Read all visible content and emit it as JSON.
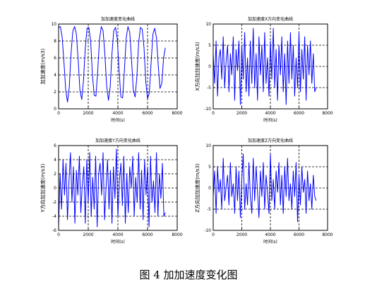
{
  "caption": "图 4  加加速度变化图",
  "chart_data": [
    {
      "type": "line",
      "title": "加加速度变化曲线",
      "xlabel": "时间(s)",
      "ylabel": "加加速度(m/s3)",
      "xlim": [
        0,
        8000
      ],
      "ylim": [
        0,
        10
      ],
      "xticks": [
        0,
        2000,
        4000,
        6000,
        8000
      ],
      "yticks": [
        0,
        2,
        4,
        6,
        8,
        10
      ],
      "grid": true,
      "series": [
        {
          "color": "#0000ff",
          "x": [
            0,
            120,
            240,
            360,
            480,
            600,
            720,
            840,
            960,
            1080,
            1200,
            1320,
            1440,
            1560,
            1680,
            1800,
            1920,
            2040,
            2160,
            2280,
            2400,
            2520,
            2640,
            2760,
            2880,
            3000,
            3120,
            3240,
            3360,
            3480,
            3600,
            3720,
            3840,
            3960,
            4080,
            4200,
            4320,
            4440,
            4560,
            4680,
            4800,
            4920,
            5040,
            5160,
            5280,
            5400,
            5520,
            5640,
            5760,
            5880,
            6000,
            6120,
            6240,
            6360,
            6480,
            6600,
            6720,
            6840,
            6960,
            7080,
            7200
          ],
          "y": [
            9.6,
            9.7,
            8.5,
            5.5,
            2.2,
            0.8,
            2.5,
            6.5,
            9.2,
            9.7,
            8.8,
            5.8,
            2.2,
            1.1,
            3.4,
            7.2,
            9.5,
            9.6,
            8.0,
            4.0,
            1.6,
            1.5,
            4.5,
            8.2,
            9.7,
            9.2,
            6.5,
            2.8,
            1.0,
            2.6,
            6.5,
            9.2,
            9.6,
            8.2,
            4.5,
            1.4,
            1.3,
            4.5,
            8.4,
            9.7,
            9.0,
            5.8,
            2.2,
            1.4,
            3.8,
            7.8,
            9.6,
            9.4,
            7.2,
            3.2,
            1.2,
            1.9,
            5.4,
            8.8,
            9.5,
            8.4,
            5.2,
            2.4,
            3.0,
            6.0,
            7.2
          ]
        }
      ]
    },
    {
      "type": "line",
      "title": "加加速度X方向变化曲线",
      "xlabel": "时间(s)",
      "ylabel": "X方向加加速度(m/s3)",
      "xlim": [
        0,
        8000
      ],
      "ylim": [
        -10,
        10
      ],
      "xticks": [
        0,
        2000,
        4000,
        6000,
        8000
      ],
      "yticks": [
        -10,
        -5,
        0,
        5,
        10
      ],
      "grid": true,
      "series": [
        {
          "color": "#0000ff",
          "x": [
            0,
            100,
            200,
            300,
            400,
            500,
            600,
            700,
            800,
            900,
            1000,
            1100,
            1200,
            1300,
            1400,
            1500,
            1600,
            1700,
            1800,
            1900,
            2000,
            2100,
            2200,
            2300,
            2400,
            2500,
            2600,
            2700,
            2800,
            2900,
            3000,
            3100,
            3200,
            3300,
            3400,
            3500,
            3600,
            3700,
            3800,
            3900,
            4000,
            4100,
            4200,
            4300,
            4400,
            4500,
            4600,
            4700,
            4800,
            4900,
            5000,
            5100,
            5200,
            5300,
            5400,
            5500,
            5600,
            5700,
            5800,
            5900,
            6000,
            6100,
            6200,
            6300,
            6400,
            6500,
            6600,
            6700,
            6800,
            6900,
            7000,
            7100,
            7200
          ],
          "y": [
            3,
            -4,
            6,
            -7,
            2,
            4,
            -3,
            7,
            -5,
            1,
            5,
            -6,
            3,
            -2,
            7,
            -8,
            4,
            -1,
            6,
            -9,
            5,
            -3,
            8,
            -6,
            2,
            -7,
            6,
            -4,
            9,
            -5,
            3,
            -8,
            7,
            -2,
            5,
            -6,
            8,
            -4,
            2,
            -7,
            6,
            -3,
            9,
            -5,
            4,
            -8,
            5,
            -2,
            7,
            -6,
            3,
            -9,
            6,
            -4,
            8,
            -3,
            5,
            -7,
            2,
            -5,
            8,
            -6,
            4,
            -3,
            7,
            -8,
            5,
            -2,
            6,
            -4,
            3,
            -6,
            -5
          ]
        }
      ]
    },
    {
      "type": "line",
      "title": "加加速度Y方向变化曲线",
      "xlabel": "时间(s)",
      "ylabel": "Y方向加加速度(m/s3)",
      "xlim": [
        0,
        8000
      ],
      "ylim": [
        -6,
        6
      ],
      "xticks": [
        0,
        2000,
        4000,
        6000,
        8000
      ],
      "yticks": [
        -6,
        -4,
        -2,
        0,
        2,
        4,
        6
      ],
      "grid": true,
      "series": [
        {
          "color": "#0000ff",
          "x": [
            0,
            100,
            200,
            300,
            400,
            500,
            600,
            700,
            800,
            900,
            1000,
            1100,
            1200,
            1300,
            1400,
            1500,
            1600,
            1700,
            1800,
            1900,
            2000,
            2100,
            2200,
            2300,
            2400,
            2500,
            2600,
            2700,
            2800,
            2900,
            3000,
            3100,
            3200,
            3300,
            3400,
            3500,
            3600,
            3700,
            3800,
            3900,
            4000,
            4100,
            4200,
            4300,
            4400,
            4500,
            4600,
            4700,
            4800,
            4900,
            5000,
            5100,
            5200,
            5300,
            5400,
            5500,
            5600,
            5700,
            5800,
            5900,
            6000,
            6100,
            6200,
            6300,
            6400,
            6500,
            6600,
            6700,
            6800,
            6900,
            7000,
            7100,
            7200
          ],
          "y": [
            -5.5,
            2,
            -3,
            4,
            -1,
            3.5,
            -4.5,
            1,
            5,
            -2,
            3,
            -5,
            2.5,
            -1,
            4.5,
            -3.5,
            0.5,
            3,
            -5,
            4,
            -2,
            5,
            -4,
            1.5,
            -3,
            4.5,
            -5.5,
            2,
            3.5,
            -1,
            5,
            -4.5,
            0,
            4,
            -3,
            2.5,
            -5,
            3,
            -1.5,
            5.5,
            -4,
            1,
            3.5,
            -2.5,
            4.5,
            -5,
            2,
            -3.5,
            3,
            0,
            4.5,
            -4,
            1.5,
            -2,
            5,
            -3,
            2.5,
            -4.5,
            4,
            -1,
            3,
            -5.5,
            4.5,
            -2,
            1,
            -3.5,
            5,
            -4,
            2,
            -1.5,
            3.5,
            -4,
            -3.5
          ]
        }
      ]
    },
    {
      "type": "line",
      "title": "加加速度Z方向变化曲线",
      "xlabel": "时间(s)",
      "ylabel": "Z方向加加速度(m/s3)",
      "xlim": [
        0,
        8000
      ],
      "ylim": [
        -10,
        10
      ],
      "xticks": [
        0,
        2000,
        4000,
        6000,
        8000
      ],
      "yticks": [
        -10,
        -5,
        0,
        5,
        10
      ],
      "grid": true,
      "series": [
        {
          "color": "#0000ff",
          "x": [
            0,
            100,
            200,
            300,
            400,
            500,
            600,
            700,
            800,
            900,
            1000,
            1100,
            1200,
            1300,
            1400,
            1500,
            1600,
            1700,
            1800,
            1900,
            2000,
            2100,
            2200,
            2300,
            2400,
            2500,
            2600,
            2700,
            2800,
            2900,
            3000,
            3100,
            3200,
            3300,
            3400,
            3500,
            3600,
            3700,
            3800,
            3900,
            4000,
            4100,
            4200,
            4300,
            4400,
            4500,
            4600,
            4700,
            4800,
            4900,
            5000,
            5100,
            5200,
            5300,
            5400,
            5500,
            5600,
            5700,
            5800,
            5900,
            6000,
            6100,
            6200,
            6300,
            6400,
            6500,
            6600,
            6700,
            6800,
            6900,
            7000,
            7100,
            7200
          ],
          "y": [
            -2,
            4,
            -6,
            5,
            -1,
            2,
            -5,
            7,
            -3,
            0,
            3,
            -4,
            6,
            -2,
            1,
            -6,
            5,
            -3,
            4,
            -7,
            2,
            8,
            -5,
            1,
            -4,
            6,
            -2,
            -6,
            7,
            -3,
            5,
            -1,
            -7,
            4,
            -2,
            6,
            -5,
            3,
            -1,
            -6,
            8,
            -3,
            2,
            -5,
            4,
            -1,
            6,
            -4,
            3,
            -6,
            5,
            -2,
            7,
            -3,
            1,
            -5,
            4,
            -2,
            6,
            -8,
            3,
            -4,
            5,
            -1,
            2,
            -6,
            4,
            -3,
            1,
            -5,
            3,
            -2,
            -3
          ]
        }
      ]
    }
  ]
}
